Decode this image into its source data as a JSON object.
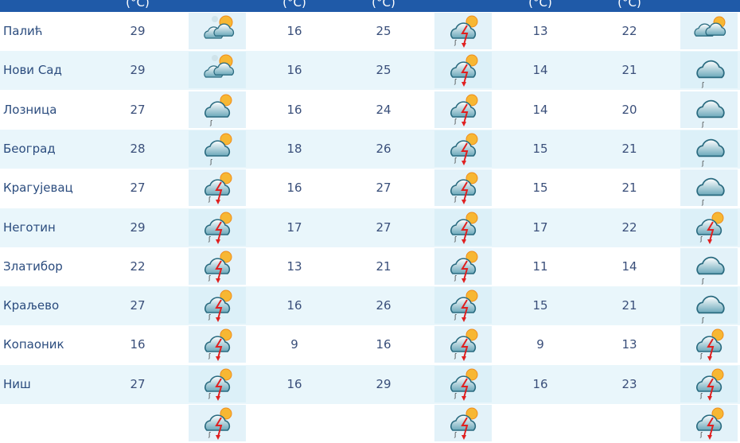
{
  "header": {
    "unit_labels": [
      "(°C)",
      "(°C)",
      "(°C)",
      "(°C)",
      "(°C)"
    ]
  },
  "colors": {
    "header": "#1f5aa8",
    "row_alt": "#e9f6fb",
    "text": "#3a4f7a"
  },
  "rows": [
    {
      "city": "Палић",
      "t1": "29",
      "icon1": "partly-sunny",
      "t2": "16",
      "t3": "25",
      "icon2": "thunderstorm",
      "t4": "13",
      "t5": "22",
      "icon3": "cloudy-sun"
    },
    {
      "city": "Нови Сад",
      "t1": "29",
      "icon1": "partly-sunny",
      "t2": "16",
      "t3": "25",
      "icon2": "thunderstorm",
      "t4": "14",
      "t5": "21",
      "icon3": "cloud-rain"
    },
    {
      "city": "Лозница",
      "t1": "27",
      "icon1": "cloud-sun-rain",
      "t2": "16",
      "t3": "24",
      "icon2": "thunderstorm",
      "t4": "14",
      "t5": "20",
      "icon3": "cloud-rain"
    },
    {
      "city": "Београд",
      "t1": "28",
      "icon1": "cloud-sun-rain",
      "t2": "18",
      "t3": "26",
      "icon2": "thunderstorm",
      "t4": "15",
      "t5": "21",
      "icon3": "cloud-rain"
    },
    {
      "city": "Крагујевац",
      "t1": "27",
      "icon1": "thunderstorm",
      "t2": "16",
      "t3": "27",
      "icon2": "thunderstorm",
      "t4": "15",
      "t5": "21",
      "icon3": "cloud-rain"
    },
    {
      "city": "Неготин",
      "t1": "29",
      "icon1": "thunderstorm",
      "t2": "17",
      "t3": "27",
      "icon2": "thunderstorm",
      "t4": "17",
      "t5": "22",
      "icon3": "thunderstorm"
    },
    {
      "city": "Златибор",
      "t1": "22",
      "icon1": "thunderstorm",
      "t2": "13",
      "t3": "21",
      "icon2": "thunderstorm",
      "t4": "11",
      "t5": "14",
      "icon3": "cloud-rain"
    },
    {
      "city": "Краљево",
      "t1": "27",
      "icon1": "thunderstorm",
      "t2": "16",
      "t3": "26",
      "icon2": "thunderstorm",
      "t4": "15",
      "t5": "21",
      "icon3": "cloud-rain"
    },
    {
      "city": "Копаоник",
      "t1": "16",
      "icon1": "thunderstorm",
      "t2": "9",
      "t3": "16",
      "icon2": "thunderstorm",
      "t4": "9",
      "t5": "13",
      "icon3": "thunderstorm"
    },
    {
      "city": "Ниш",
      "t1": "27",
      "icon1": "thunderstorm",
      "t2": "16",
      "t3": "29",
      "icon2": "thunderstorm",
      "t4": "16",
      "t5": "23",
      "icon3": "thunderstorm"
    },
    {
      "city": "",
      "t1": "",
      "icon1": "thunderstorm",
      "t2": "",
      "t3": "",
      "icon2": "thunderstorm",
      "t4": "",
      "t5": "",
      "icon3": "thunderstorm"
    }
  ]
}
